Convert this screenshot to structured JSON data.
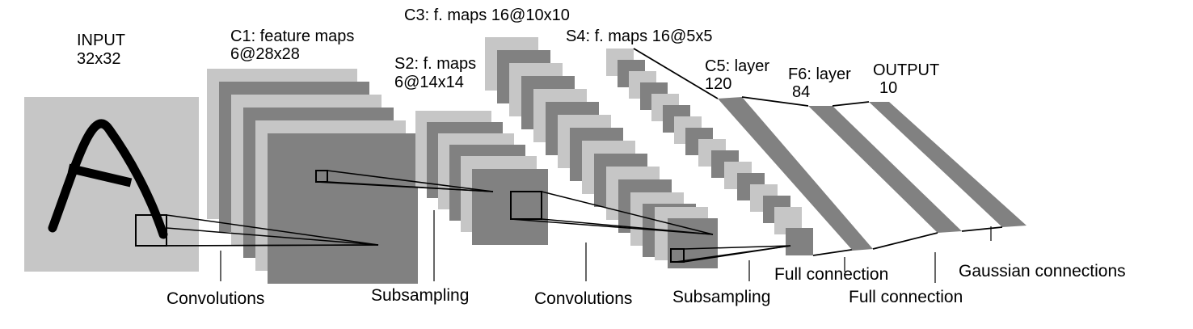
{
  "colors": {
    "light": "#c6c6c6",
    "dark": "#818181",
    "stroke": "#000000",
    "background": "#ffffff"
  },
  "stages": {
    "input": {
      "line1": "INPUT",
      "line2": "32x32"
    },
    "c1": {
      "line1": "C1: feature maps",
      "line2": "6@28x28"
    },
    "s2": {
      "line1": "S2: f. maps",
      "line2": "6@14x14"
    },
    "c3": {
      "line1": "C3: f. maps 16@10x10"
    },
    "s4": {
      "line1": "S4: f. maps 16@5x5"
    },
    "c5": {
      "line1": "C5: layer",
      "line2": "120"
    },
    "f6": {
      "line1": "F6: layer",
      "line2": "84"
    },
    "output": {
      "line1": "OUTPUT",
      "line2": "10"
    }
  },
  "operations": {
    "conv1": "Convolutions",
    "sub1": "Subsampling",
    "conv2": "Convolutions",
    "sub2": "Subsampling",
    "full1": "Full connection",
    "full2": "Full connection",
    "gauss": "Gaussian connections"
  }
}
